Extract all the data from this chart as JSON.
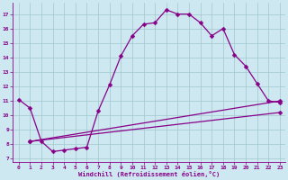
{
  "xlabel": "Windchill (Refroidissement éolien,°C)",
  "background_color": "#cde8f0",
  "grid_color": "#a0c8cc",
  "line_color": "#880088",
  "xlim": [
    -0.5,
    23.5
  ],
  "ylim": [
    6.8,
    17.8
  ],
  "xticks": [
    0,
    1,
    2,
    3,
    4,
    5,
    6,
    7,
    8,
    9,
    10,
    11,
    12,
    13,
    14,
    15,
    16,
    17,
    18,
    19,
    20,
    21,
    22,
    23
  ],
  "yticks": [
    7,
    8,
    9,
    10,
    11,
    12,
    13,
    14,
    15,
    16,
    17
  ],
  "line1_x": [
    0,
    1,
    2,
    3,
    4,
    5,
    6,
    7,
    8,
    9,
    10,
    11,
    12,
    13,
    14,
    15,
    16,
    17,
    18,
    19,
    20,
    21,
    22,
    23
  ],
  "line1_y": [
    11.1,
    10.5,
    8.2,
    7.5,
    7.6,
    7.7,
    7.8,
    10.3,
    12.1,
    14.1,
    15.5,
    16.3,
    16.4,
    17.3,
    17.0,
    17.0,
    16.4,
    15.5,
    16.0,
    14.2,
    13.4,
    12.2,
    11.0,
    10.9
  ],
  "line2_x": [
    1,
    23
  ],
  "line2_y": [
    8.2,
    11.0
  ],
  "line3_x": [
    1,
    23
  ],
  "line3_y": [
    8.2,
    10.2
  ],
  "marker_size": 2.5,
  "linewidth": 0.9,
  "tick_fontsize": 4.5,
  "xlabel_fontsize": 5.0
}
